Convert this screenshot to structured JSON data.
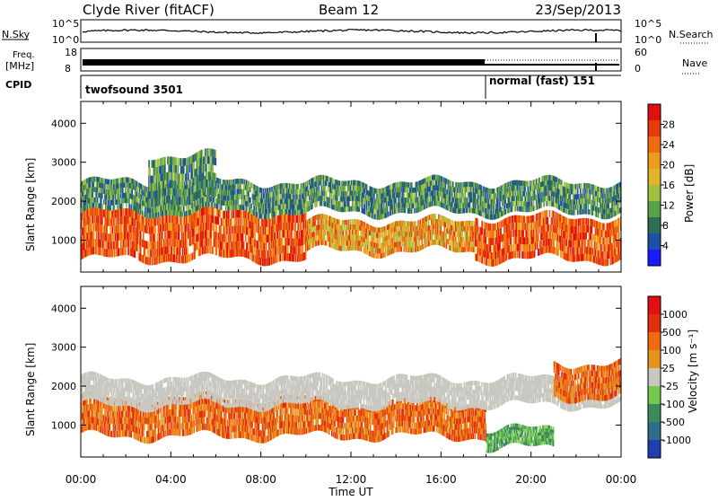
{
  "header": {
    "station": "Clyde River (fitACF)",
    "beam": "Beam 12",
    "date": "23/Sep/2013"
  },
  "panels": {
    "nsky": {
      "left_label": "N.Sky",
      "right_label": "N.Search",
      "left_ticks": [
        "10^5",
        "10^0"
      ],
      "right_ticks": [
        "10^5",
        "10^0"
      ]
    },
    "freq": {
      "left_label_1": "Freq.",
      "left_label_2": "[MHz]",
      "left_ticks": [
        "18",
        "8"
      ],
      "right_ticks": [
        "60",
        "0"
      ],
      "right_label": "Nave"
    },
    "cpid": {
      "label": "CPID",
      "programs": [
        "twofsound 3501",
        "normal (fast) 151"
      ]
    }
  },
  "chart_data": [
    {
      "type": "heatmap",
      "title": "Power",
      "ylabel": "Slant Range [km]",
      "ylim": [
        180,
        4560
      ],
      "yticks": [
        "1000",
        "2000",
        "3000",
        "4000"
      ],
      "xlim": [
        "00:00",
        "24:00"
      ],
      "colorbar": {
        "label": "Power [dB]",
        "ticks": [
          "4",
          "8",
          "12",
          "16",
          "20",
          "24",
          "28"
        ],
        "colors": [
          "#1a1aff",
          "#1f4fa8",
          "#2d6e57",
          "#5aa14c",
          "#9ec23e",
          "#e2b42a",
          "#f09a1e",
          "#f06a10",
          "#e83a0b",
          "#e01010"
        ]
      },
      "bands": [
        {
          "from_h": 0.0,
          "to_h": 10.0,
          "range_km": [
            500,
            1700
          ],
          "level": "high"
        },
        {
          "from_h": 10.0,
          "to_h": 17.5,
          "range_km": [
            700,
            1500
          ],
          "level": "mid"
        },
        {
          "from_h": 17.5,
          "to_h": 24.0,
          "range_km": [
            500,
            1600
          ],
          "level": "high"
        },
        {
          "from_h": 0.0,
          "to_h": 24.0,
          "range_km": [
            1700,
            2500
          ],
          "level": "low"
        },
        {
          "from_h": 3.0,
          "to_h": 6.0,
          "range_km": [
            2000,
            3200
          ],
          "level": "low"
        }
      ]
    },
    {
      "type": "heatmap",
      "title": "Velocity",
      "ylabel": "Slant Range [km]",
      "ylim": [
        180,
        4560
      ],
      "yticks": [
        "1000",
        "2000",
        "3000",
        "4000"
      ],
      "xlabel": "Time UT",
      "xticks": [
        "00:00",
        "04:00",
        "08:00",
        "12:00",
        "16:00",
        "20:00",
        "00:00"
      ],
      "xlim": [
        "00:00",
        "24:00"
      ],
      "colorbar": {
        "label": "Velocity [m s⁻¹]",
        "ticks": [
          "1000",
          "500",
          "100",
          "25",
          "-25",
          "-100",
          "-500",
          "-1000"
        ],
        "colors": [
          "#1f3fb0",
          "#2d6e8c",
          "#3c8a5a",
          "#74c84a",
          "#c8c8c0",
          "#e8921e",
          "#f06a10",
          "#e03010",
          "#e01010"
        ]
      },
      "bands": [
        {
          "from_h": 0.0,
          "to_h": 10.0,
          "range_km": [
            700,
            1700
          ],
          "level": "neg"
        },
        {
          "from_h": 10.0,
          "to_h": 18.0,
          "range_km": [
            700,
            1600
          ],
          "level": "neg"
        },
        {
          "from_h": 0.0,
          "to_h": 24.0,
          "range_km": [
            1500,
            2200
          ],
          "level": "zero"
        },
        {
          "from_h": 18.0,
          "to_h": 21.0,
          "range_km": [
            400,
            900
          ],
          "level": "pos"
        },
        {
          "from_h": 21.0,
          "to_h": 24.0,
          "range_km": [
            1700,
            2600
          ],
          "level": "neg"
        }
      ]
    }
  ]
}
